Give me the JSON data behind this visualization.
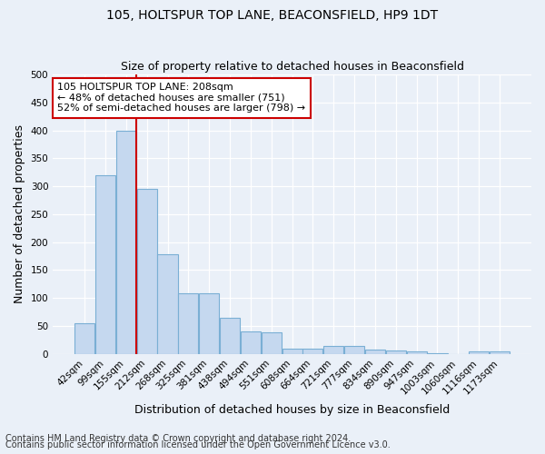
{
  "title": "105, HOLTSPUR TOP LANE, BEACONSFIELD, HP9 1DT",
  "subtitle": "Size of property relative to detached houses in Beaconsfield",
  "xlabel": "Distribution of detached houses by size in Beaconsfield",
  "ylabel": "Number of detached properties",
  "footer_line1": "Contains HM Land Registry data © Crown copyright and database right 2024.",
  "footer_line2": "Contains public sector information licensed under the Open Government Licence v3.0.",
  "categories": [
    "42sqm",
    "99sqm",
    "155sqm",
    "212sqm",
    "268sqm",
    "325sqm",
    "381sqm",
    "438sqm",
    "494sqm",
    "551sqm",
    "608sqm",
    "664sqm",
    "721sqm",
    "777sqm",
    "834sqm",
    "890sqm",
    "947sqm",
    "1003sqm",
    "1060sqm",
    "1116sqm",
    "1173sqm"
  ],
  "values": [
    55,
    320,
    400,
    295,
    178,
    108,
    108,
    65,
    40,
    38,
    10,
    10,
    15,
    15,
    8,
    6,
    4,
    2,
    0,
    5,
    5
  ],
  "bar_color": "#c5d8ef",
  "bar_edge_color": "#7aafd4",
  "vline_x": 2.5,
  "vline_color": "#cc0000",
  "annotation_text": "105 HOLTSPUR TOP LANE: 208sqm\n← 48% of detached houses are smaller (751)\n52% of semi-detached houses are larger (798) →",
  "annotation_box_color": "#ffffff",
  "annotation_box_edge_color": "#cc0000",
  "ylim": [
    0,
    500
  ],
  "yticks": [
    0,
    50,
    100,
    150,
    200,
    250,
    300,
    350,
    400,
    450,
    500
  ],
  "background_color": "#eaf0f8",
  "grid_color": "#ffffff",
  "title_fontsize": 10,
  "subtitle_fontsize": 9,
  "axis_label_fontsize": 9,
  "tick_fontsize": 7.5,
  "footer_fontsize": 7,
  "annot_fontsize": 8
}
